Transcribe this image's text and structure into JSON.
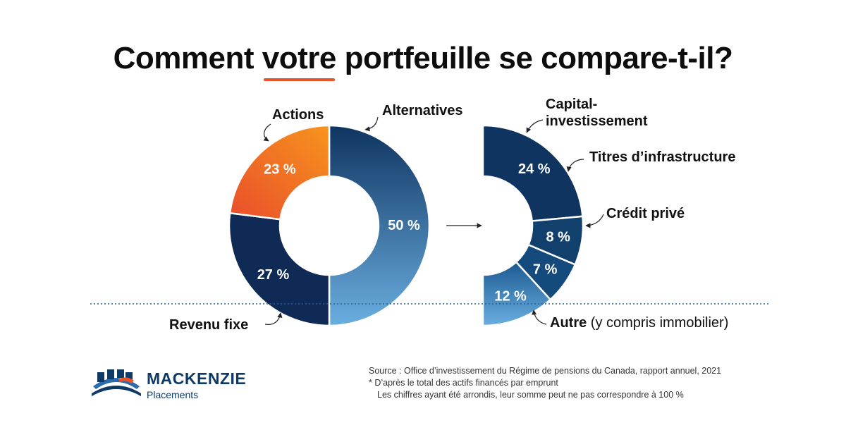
{
  "header": {
    "title_before": "Comment ",
    "title_highlight": "votre",
    "title_after": " portfeuille se compare-t-il?"
  },
  "chart_data": [
    {
      "type": "pie",
      "categories": [
        "Alternatives",
        "Revenu fixe",
        "Actions"
      ],
      "values": [
        50,
        27,
        23
      ],
      "value_labels": [
        "50 %",
        "27 %",
        "23 %"
      ],
      "unit": "%"
    },
    {
      "type": "pie",
      "categories": [
        "Capital-investissement",
        "Titres d’infrastructure",
        "Crédit privé",
        "Autre (y compris immobilier)"
      ],
      "values": [
        24,
        8,
        7,
        12
      ],
      "value_labels": [
        "24 %",
        "8 %",
        "7 %",
        "12 %"
      ],
      "unit": "%"
    }
  ],
  "labels": {
    "actions": "Actions",
    "alternatives": "Alternatives",
    "revenu_fixe": "Revenu fixe",
    "capital_line1": "Capital-",
    "capital_line2": "investissement",
    "infrastructure": "Titres d’infrastructure",
    "credit": "Crédit privé",
    "autre_bold": "Autre",
    "autre_rest": " (y compris immobilier)"
  },
  "footer": {
    "source_line1": "Source : Office d’investissement du Régime de pensions du Canada, rapport annuel, 2021",
    "source_line2": "* D’après le total des actifs financés par emprunt",
    "source_line3": "Les chiffres ayant été arrondis, leur somme peut ne pas correspondre à 100 %"
  },
  "brand": {
    "name": "MACKENZIE",
    "sub": "Placements",
    "navy": "#0f3a66",
    "orange": "#e8532a"
  },
  "colors": {
    "alternatives_top": "#0f3460",
    "alternatives_bottom": "#6aaee0",
    "revenu_fixe": "#0f2a55",
    "actions_start": "#f7941d",
    "actions_end": "#e94e2b",
    "capital": "#0f3460",
    "infrastructure": "#12406d",
    "credit": "#144a7c",
    "autre_top": "#1b5a91",
    "autre_bottom": "#6aaee0"
  }
}
